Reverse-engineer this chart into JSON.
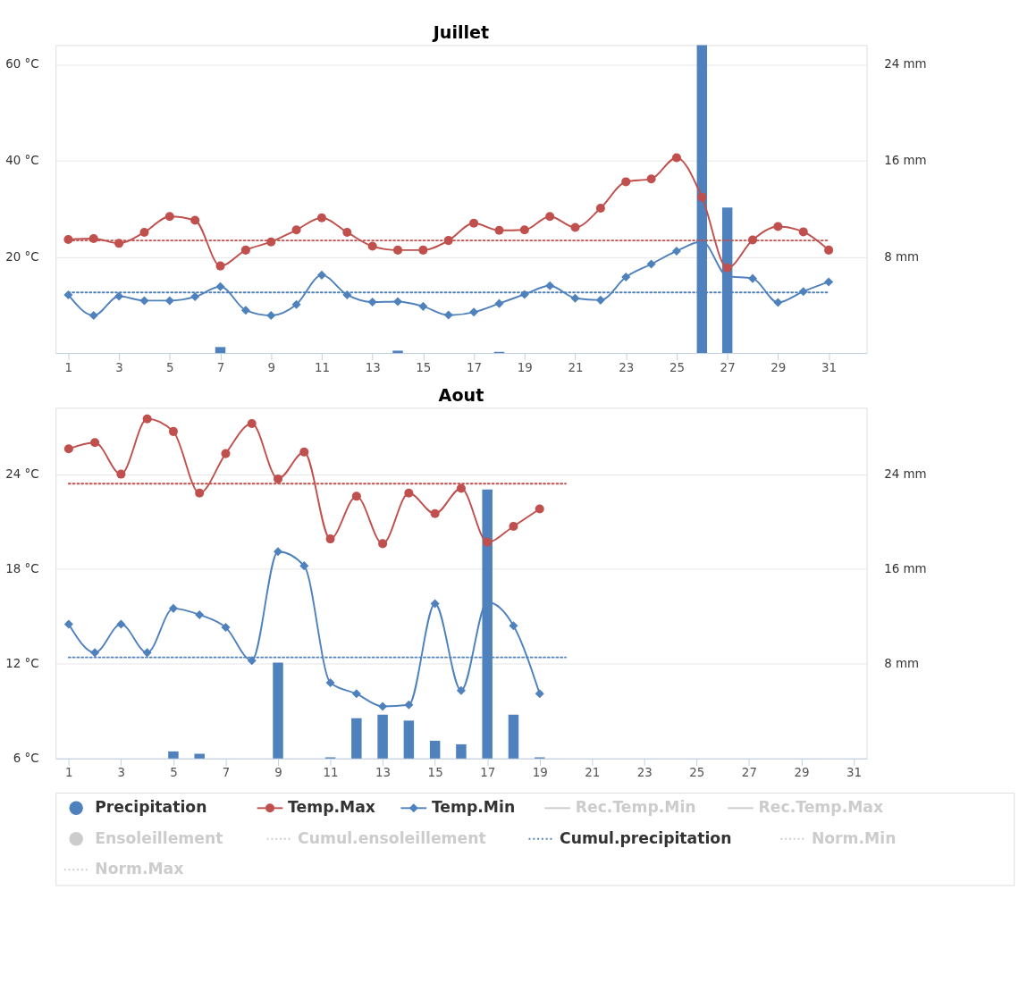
{
  "chart_data": [
    {
      "type": "line",
      "title": "Juillet",
      "x": [
        1,
        2,
        3,
        4,
        5,
        6,
        7,
        8,
        9,
        10,
        11,
        12,
        13,
        14,
        15,
        16,
        17,
        18,
        19,
        20,
        21,
        22,
        23,
        24,
        25,
        26,
        27,
        28,
        29,
        30,
        31
      ],
      "xlim": [
        0.5,
        32.5
      ],
      "xticks": [
        1,
        3,
        5,
        7,
        9,
        11,
        13,
        15,
        17,
        19,
        21,
        23,
        25,
        27,
        29,
        31
      ],
      "ylim": [
        0,
        64
      ],
      "yticks": [
        {
          "value": 20,
          "label": "20 °C"
        },
        {
          "value": 40,
          "label": "40 °C"
        },
        {
          "value": 60,
          "label": "60 °C"
        }
      ],
      "y2lim": [
        0,
        25.6
      ],
      "y2ticks": [
        {
          "value": 8,
          "label": "8 mm"
        },
        {
          "value": 16,
          "label": "16 mm"
        },
        {
          "value": 24,
          "label": "24 mm"
        }
      ],
      "grid": "y",
      "legend": "bottom",
      "series": [
        {
          "type": "bar",
          "name": "Precipitation",
          "color": "#4f81bd",
          "axis": "y2",
          "values": [
            null,
            null,
            null,
            null,
            null,
            null,
            0.5,
            null,
            null,
            null,
            null,
            null,
            null,
            0.2,
            null,
            null,
            null,
            0.1,
            null,
            null,
            null,
            null,
            null,
            null,
            null,
            25.6,
            12.1,
            null,
            null,
            null,
            null
          ]
        },
        {
          "name": "Temp.Max",
          "color": "#c0504d",
          "marker": "circle",
          "line_style": "solid",
          "values": [
            23.6,
            23.8,
            22.8,
            25.1,
            28.4,
            27.6,
            18.1,
            21.4,
            23.1,
            25.6,
            28.1,
            25.1,
            22.2,
            21.4,
            21.4,
            23.4,
            27.0,
            25.5,
            25.6,
            28.4,
            26.1,
            30.1,
            35.6,
            36.2,
            40.6,
            32.4,
            17.7,
            23.5,
            26.3,
            25.2,
            21.4
          ]
        },
        {
          "name": "Temp.Min",
          "color": "#4f81bd",
          "marker": "diamond",
          "line_style": "solid",
          "values": [
            12.1,
            7.8,
            11.8,
            10.9,
            10.9,
            11.7,
            13.8,
            8.9,
            7.8,
            10.1,
            16.2,
            12.1,
            10.6,
            10.7,
            9.7,
            7.9,
            8.5,
            10.3,
            12.2,
            14.0,
            11.4,
            11.0,
            15.8,
            18.5,
            21.2,
            23.2,
            16.0,
            15.5,
            10.5,
            12.8,
            14.8
          ]
        },
        {
          "color": "#c0504d",
          "marker": "none",
          "line_style": "dotted",
          "values": [
            23.4,
            23.4,
            23.4,
            23.4,
            23.4,
            23.4,
            23.4,
            23.4,
            23.4,
            23.4,
            23.4,
            23.4,
            23.4,
            23.4,
            23.4,
            23.4,
            23.4,
            23.4,
            23.4,
            23.4,
            23.4,
            23.4,
            23.4,
            23.4,
            23.4,
            23.4,
            23.4,
            23.4,
            23.4,
            23.4,
            23.4
          ]
        },
        {
          "name": "Cumul.precipitation",
          "color": "#4f81bd",
          "marker": "none",
          "line_style": "dotted",
          "values": [
            12.6,
            12.6,
            12.6,
            12.6,
            12.6,
            12.6,
            12.6,
            12.6,
            12.6,
            12.6,
            12.6,
            12.6,
            12.6,
            12.6,
            12.6,
            12.6,
            12.6,
            12.6,
            12.6,
            12.6,
            12.6,
            12.6,
            12.6,
            12.6,
            12.6,
            12.6,
            12.6,
            12.6,
            12.6,
            12.6,
            12.6
          ]
        }
      ]
    },
    {
      "type": "line",
      "title": "Aout",
      "x": [
        1,
        2,
        3,
        4,
        5,
        6,
        7,
        8,
        9,
        10,
        11,
        12,
        13,
        14,
        15,
        16,
        17,
        18,
        19,
        20
      ],
      "xlim": [
        0.5,
        31.5
      ],
      "xticks": [
        1,
        3,
        5,
        7,
        9,
        11,
        13,
        15,
        17,
        19,
        21,
        23,
        25,
        27,
        29,
        31
      ],
      "ylim": [
        6,
        28.2
      ],
      "yticks": [
        {
          "value": 6,
          "label": "6 °C"
        },
        {
          "value": 12,
          "label": "12 °C"
        },
        {
          "value": 18,
          "label": "18 °C"
        },
        {
          "value": 24,
          "label": "24 °C"
        }
      ],
      "y2lim": [
        0,
        29.6
      ],
      "y2ticks": [
        {
          "value": 8,
          "label": "8 mm"
        },
        {
          "value": 16,
          "label": "16 mm"
        },
        {
          "value": 24,
          "label": "24 mm"
        }
      ],
      "grid": "y",
      "legend": "bottom",
      "series": [
        {
          "type": "bar",
          "name": "Precipitation",
          "color": "#4f81bd",
          "axis": "y2",
          "values": [
            null,
            null,
            null,
            null,
            0.6,
            0.4,
            null,
            null,
            8.1,
            null,
            0.1,
            3.4,
            3.7,
            3.2,
            1.5,
            1.2,
            22.7,
            3.7,
            0.1,
            null
          ]
        },
        {
          "name": "Temp.Max",
          "color": "#c0504d",
          "marker": "circle",
          "line_style": "solid",
          "values": [
            25.6,
            26.0,
            24.0,
            27.5,
            26.7,
            22.8,
            25.3,
            27.2,
            23.7,
            25.4,
            19.9,
            22.6,
            19.6,
            22.8,
            21.5,
            23.1,
            19.7,
            20.7,
            21.8,
            null
          ]
        },
        {
          "name": "Temp.Min",
          "color": "#4f81bd",
          "marker": "diamond",
          "line_style": "solid",
          "values": [
            14.5,
            12.7,
            14.5,
            12.7,
            15.5,
            15.1,
            14.3,
            12.2,
            19.1,
            18.2,
            10.8,
            10.1,
            9.3,
            9.4,
            15.8,
            10.3,
            15.9,
            14.4,
            10.1,
            null
          ]
        },
        {
          "name": "Rec.Temp.Min",
          "color": "#cccccc",
          "marker": "none",
          "line_style": "solid",
          "values": [
            null,
            null,
            null,
            null,
            null,
            null,
            null,
            null,
            null,
            null,
            null,
            null,
            null,
            null,
            null,
            null,
            null,
            null,
            null,
            null
          ]
        },
        {
          "name": "Rec.Temp.Max",
          "color": "#cccccc",
          "marker": "none",
          "line_style": "solid",
          "values": [
            null,
            null,
            null,
            null,
            null,
            null,
            null,
            null,
            null,
            null,
            null,
            null,
            null,
            null,
            null,
            null,
            null,
            null,
            null,
            null
          ]
        },
        {
          "type": "bar",
          "name": "Ensoleillement",
          "color": "#cccccc",
          "values": [
            null,
            null,
            null,
            null,
            null,
            null,
            null,
            null,
            null,
            null,
            null,
            null,
            null,
            null,
            null,
            null,
            null,
            null,
            null,
            null
          ]
        },
        {
          "name": "Cumul.ensoleillement",
          "color": "#cccccc",
          "marker": "none",
          "line_style": "dotted",
          "values": [
            null,
            null,
            null,
            null,
            null,
            null,
            null,
            null,
            null,
            null,
            null,
            null,
            null,
            null,
            null,
            null,
            null,
            null,
            null,
            null
          ]
        },
        {
          "name": "Cumul.precipitation",
          "color": "#4f81bd",
          "marker": "none",
          "line_style": "dotted",
          "values": [
            12.4,
            12.4,
            12.4,
            12.4,
            12.4,
            12.4,
            12.4,
            12.4,
            12.4,
            12.4,
            12.4,
            12.4,
            12.4,
            12.4,
            12.4,
            12.4,
            12.4,
            12.4,
            12.4,
            12.4
          ]
        },
        {
          "name": "Norm.Min",
          "color": "#cccccc",
          "marker": "none",
          "line_style": "dotted",
          "values": [
            null,
            null,
            null,
            null,
            null,
            null,
            null,
            null,
            null,
            null,
            null,
            null,
            null,
            null,
            null,
            null,
            null,
            null,
            null,
            null
          ]
        },
        {
          "name": "Norm.Max",
          "color": "#cccccc",
          "marker": "none",
          "line_style": "dotted",
          "values": [
            null,
            null,
            null,
            null,
            null,
            null,
            null,
            null,
            null,
            null,
            null,
            null,
            null,
            null,
            null,
            null,
            null,
            null,
            null,
            null
          ]
        },
        {
          "color": "#c0504d",
          "marker": "none",
          "line_style": "dotted",
          "values": [
            23.4,
            23.4,
            23.4,
            23.4,
            23.4,
            23.4,
            23.4,
            23.4,
            23.4,
            23.4,
            23.4,
            23.4,
            23.4,
            23.4,
            23.4,
            23.4,
            23.4,
            23.4,
            23.4,
            23.4
          ]
        }
      ]
    }
  ]
}
